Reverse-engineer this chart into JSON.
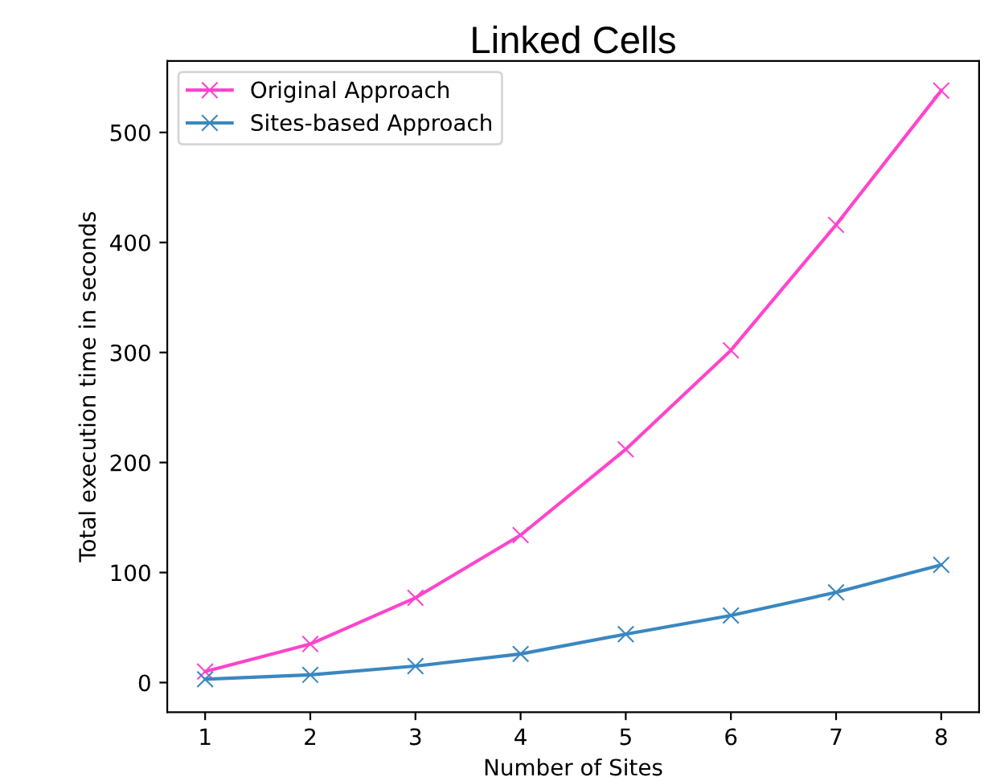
{
  "chart_data": {
    "type": "line",
    "title": "Linked Cells",
    "xlabel": "Number of Sites",
    "ylabel": "Total execution time in seconds",
    "x": [
      1,
      2,
      3,
      4,
      5,
      6,
      7,
      8
    ],
    "series": [
      {
        "name": "Original Approach",
        "color": "#ff44cc",
        "values": [
          10,
          35,
          77,
          134,
          212,
          302,
          416,
          538
        ]
      },
      {
        "name": "Sites-based Approach",
        "color": "#3a87c0",
        "values": [
          3,
          7,
          15,
          26,
          44,
          61,
          82,
          107
        ]
      }
    ],
    "xlim": [
      0.64,
      8.36
    ],
    "ylim": [
      -27,
      565
    ],
    "xticks": [
      1,
      2,
      3,
      4,
      5,
      6,
      7,
      8
    ],
    "yticks": [
      0,
      100,
      200,
      300,
      400,
      500
    ],
    "marker": "cross",
    "line_style": "solid",
    "legend": "top left",
    "grid": false
  }
}
